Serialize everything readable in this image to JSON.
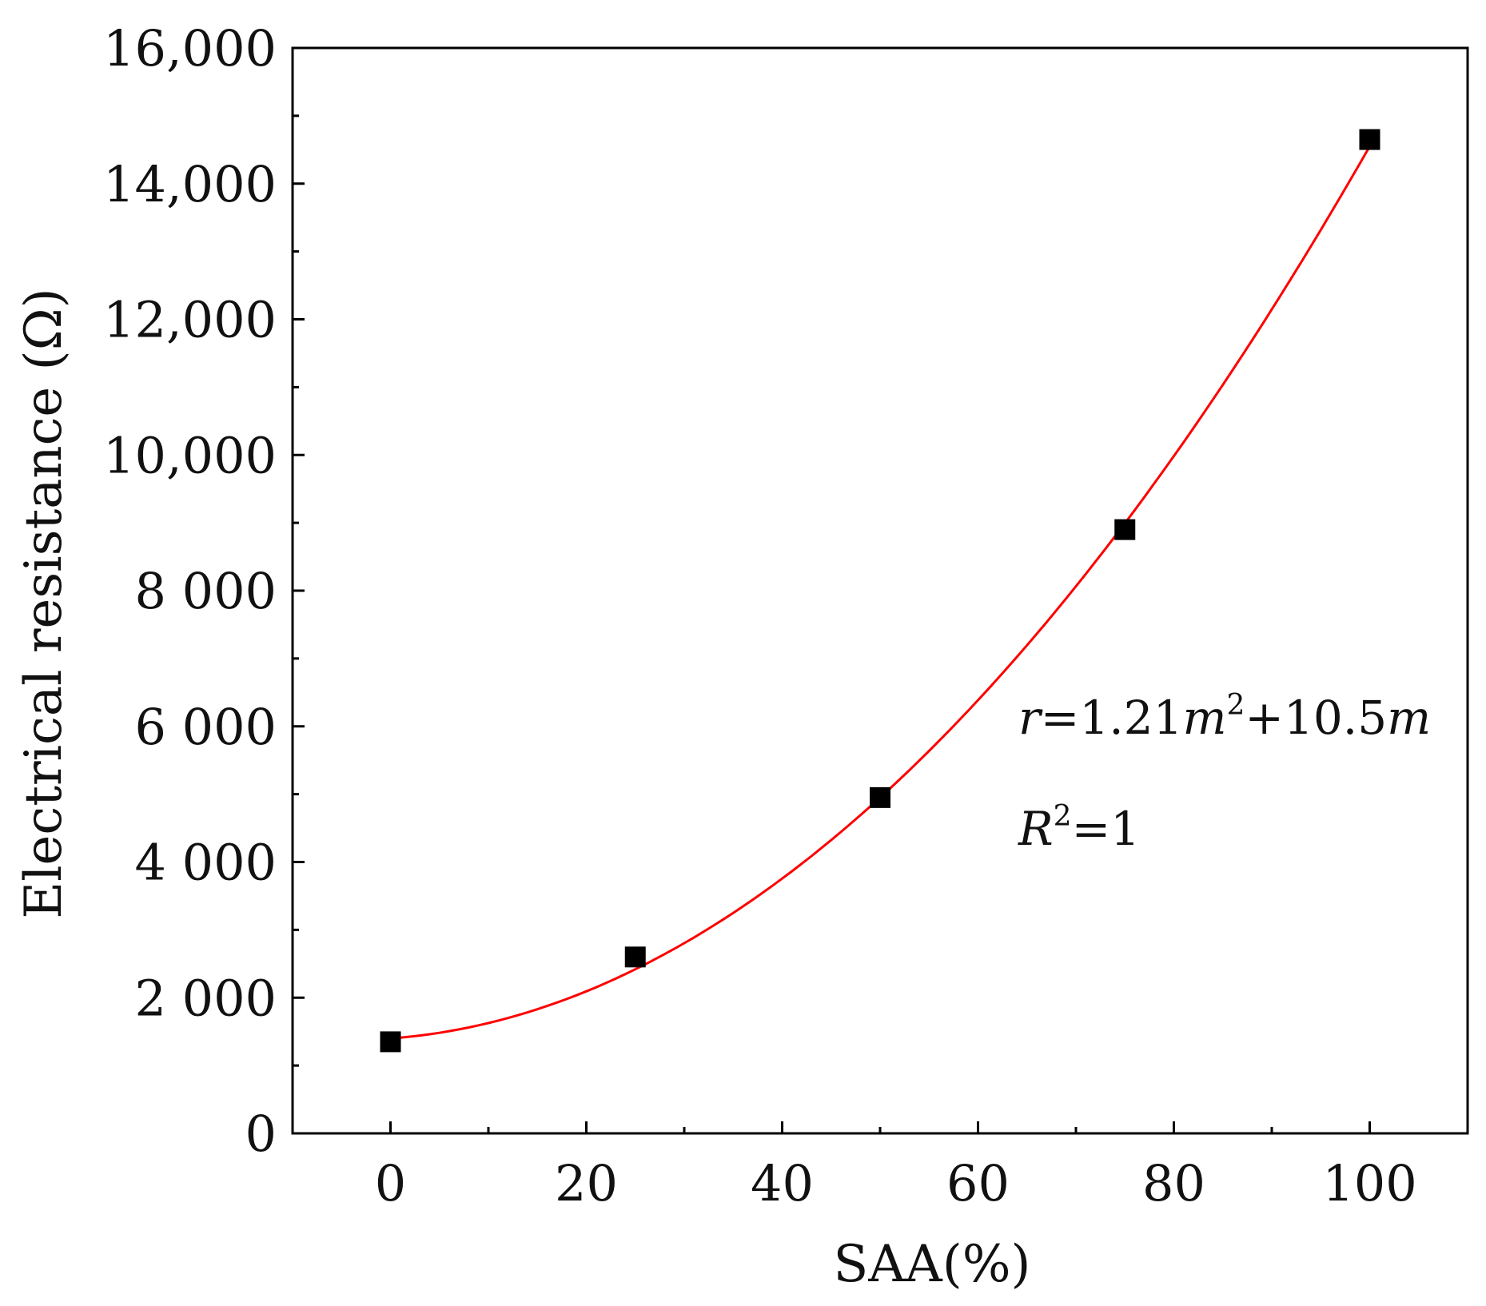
{
  "chart_data": {
    "type": "scatter",
    "xlabel": "SAA(%)",
    "ylabel": "Electrical resistance (Ω)",
    "xlim": [
      -10,
      110
    ],
    "ylim": [
      0,
      16000
    ],
    "x_ticks": [
      0,
      20,
      40,
      60,
      80,
      100
    ],
    "x_tick_labels": [
      "0",
      "20",
      "40",
      "60",
      "80",
      "100"
    ],
    "y_ticks": [
      0,
      2000,
      4000,
      6000,
      8000,
      10000,
      12000,
      14000,
      16000
    ],
    "y_tick_labels": [
      "0",
      "2 000",
      "4 000",
      "6 000",
      "8 000",
      "10,000",
      "12,000",
      "14,000",
      "16,000"
    ],
    "grid": false,
    "series": [
      {
        "x": [
          0,
          25,
          50,
          75,
          100
        ],
        "values": [
          1350,
          2600,
          4950,
          8900,
          14650
        ],
        "marker": "square",
        "color": "#000000"
      }
    ],
    "fit": {
      "type": "polynomial",
      "coefficients": {
        "a2": 1.21,
        "a1": 10.5,
        "a0": 1400
      },
      "x_range": [
        0,
        100
      ],
      "color": "#ff0000"
    },
    "annotations": {
      "equation": {
        "r": "r",
        "eq1": "=1.21",
        "m1": "m",
        "sup": "2",
        "plus": "+10.5",
        "m2": "m"
      },
      "r_squared": {
        "R": "R",
        "sup": "2",
        "val": "=1"
      }
    }
  }
}
